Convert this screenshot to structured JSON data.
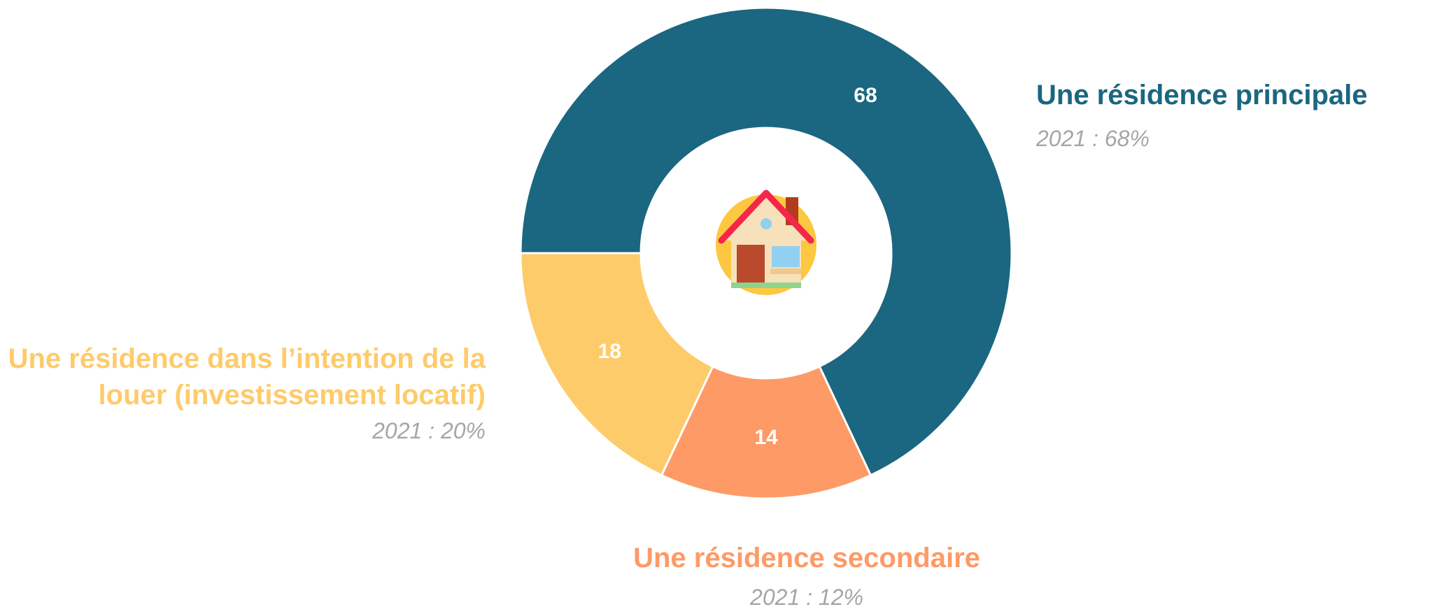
{
  "chart_data": {
    "type": "donut",
    "categories": [
      "Une résidence principale",
      "Une résidence secondaire",
      "Une résidence dans l’intention de la louer (investissement locatif)"
    ],
    "values": [
      68,
      14,
      18
    ],
    "colors": [
      "#1b6680",
      "#fe9a66",
      "#fecb6a"
    ],
    "previous_labels": [
      "2021 : 68%",
      "2021 : 12%",
      "2021 : 20%"
    ]
  }
}
